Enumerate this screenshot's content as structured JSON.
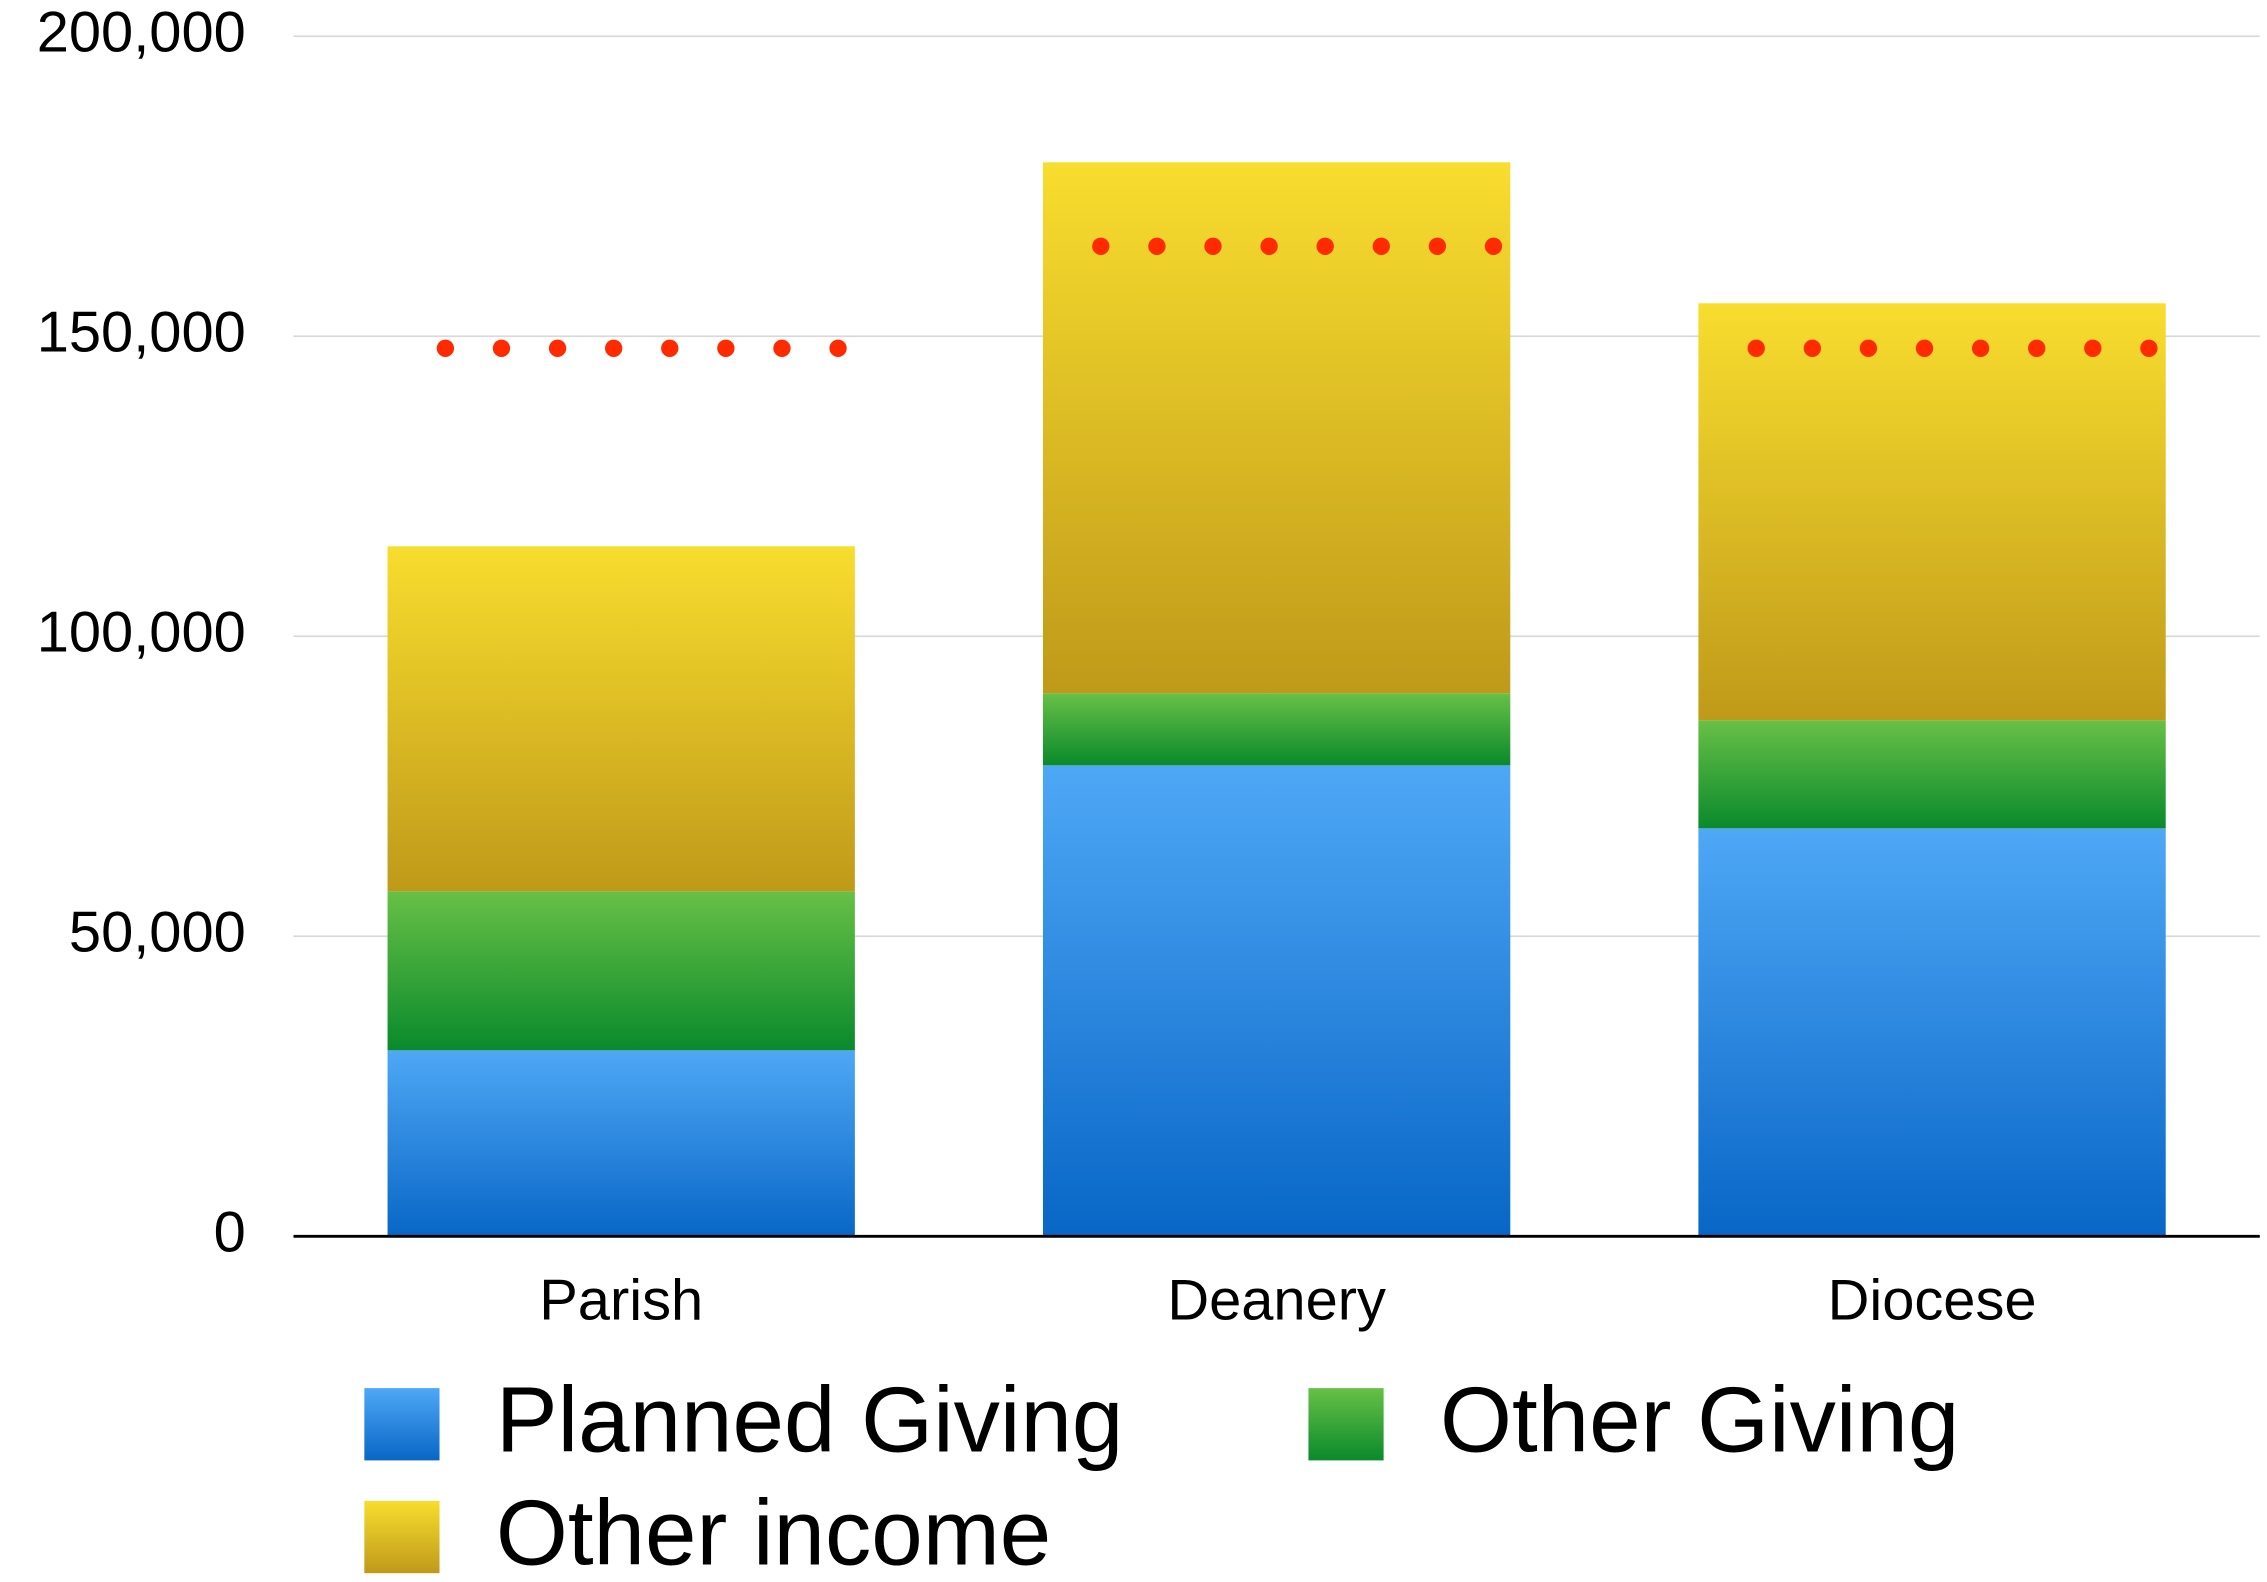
{
  "chart_data": {
    "type": "stacked_bar",
    "categories": [
      "Parish",
      "Deanery",
      "Diocese"
    ],
    "series": [
      {
        "name": "Planned Giving",
        "color": "#2a86de",
        "values": [
          31000,
          78500,
          68000
        ]
      },
      {
        "name": "Other Giving",
        "color": "#2fa53a",
        "values": [
          26500,
          12000,
          18000
        ]
      },
      {
        "name": "Other income",
        "color": "#dcc024",
        "values": [
          57500,
          88500,
          69500
        ]
      }
    ],
    "dotted_line": {
      "color": "#ff2a00",
      "values": [
        148000,
        165000,
        148000
      ]
    },
    "ylim": [
      0,
      200000
    ],
    "yticks": [
      0,
      {
        "value": 50000,
        "label": "50,000"
      },
      {
        "value": 100000,
        "label": "100,000"
      },
      {
        "value": 150000,
        "label": "150,000"
      },
      {
        "value": 200000,
        "label": "200,000"
      }
    ],
    "grid": true,
    "legend": "bottom"
  }
}
